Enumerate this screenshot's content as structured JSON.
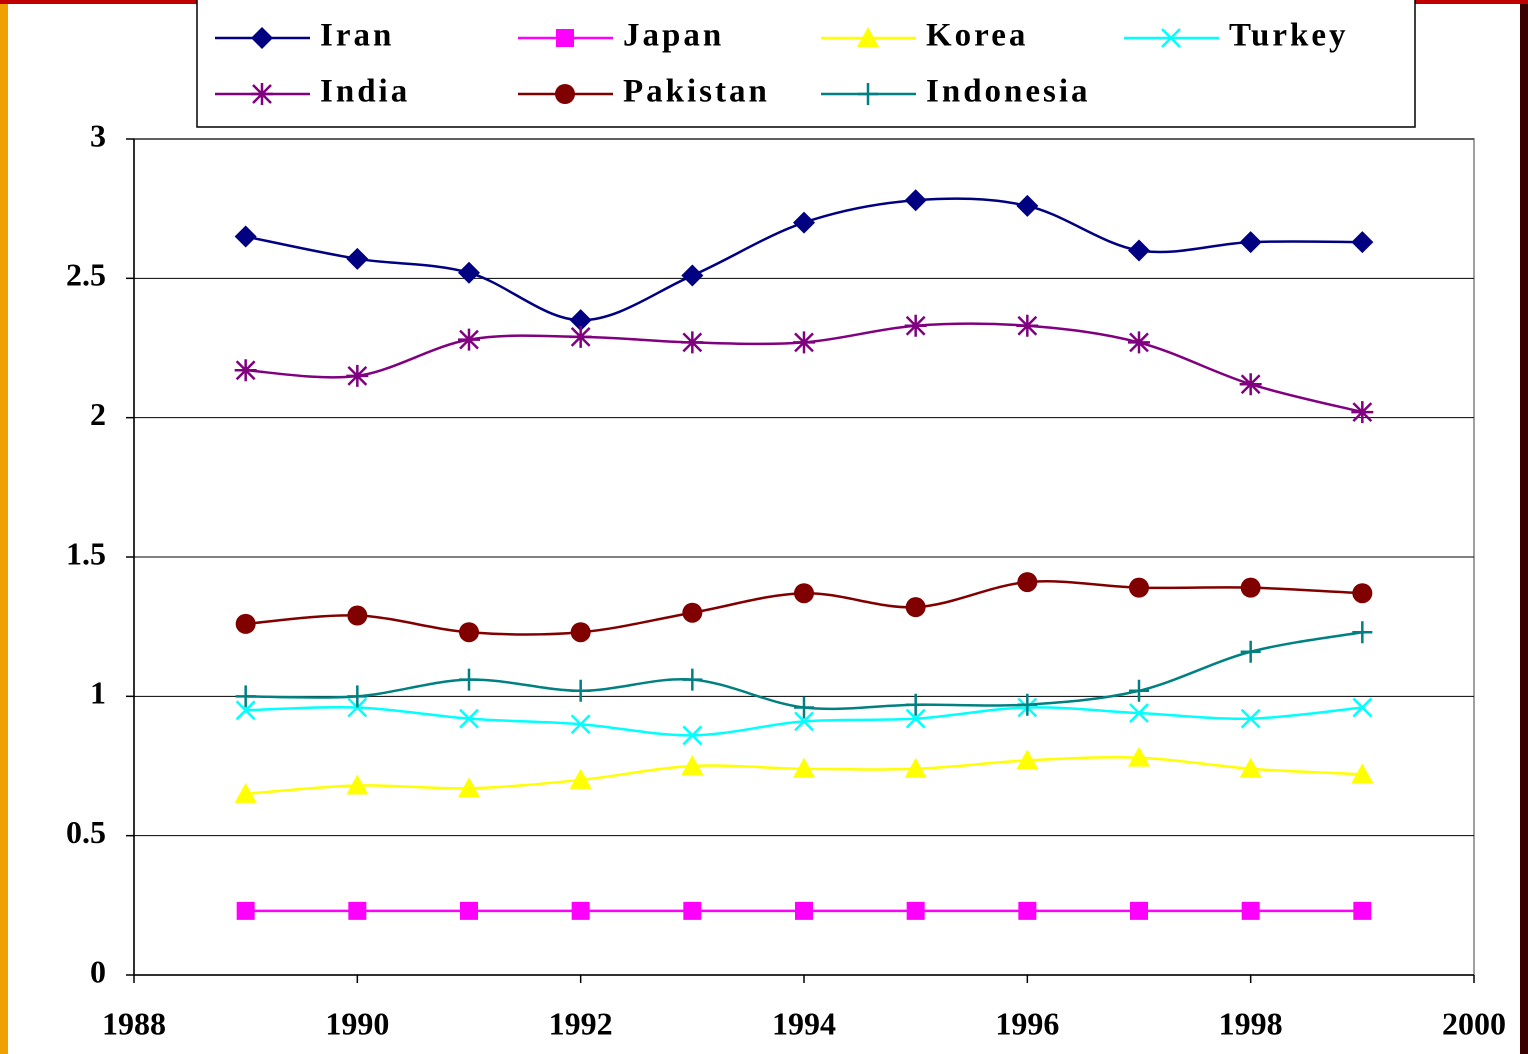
{
  "chart_data": {
    "type": "line",
    "x": [
      1989,
      1990,
      1991,
      1992,
      1993,
      1994,
      1995,
      1996,
      1997,
      1998,
      1999
    ],
    "xlim": [
      1988,
      2000
    ],
    "xticks": [
      1988,
      1990,
      1992,
      1994,
      1996,
      1998,
      2000
    ],
    "ylim": [
      0,
      3
    ],
    "yticks": [
      0,
      {
        "value": 0.5,
        "label": "0.5"
      },
      1,
      {
        "value": 1.5,
        "label": "1.5"
      },
      2,
      {
        "value": 2.5,
        "label": "2.5"
      },
      3
    ],
    "grid": true,
    "legend": "top",
    "series": [
      {
        "name": "Iran",
        "color": "#000080",
        "marker": "diamond",
        "values": [
          2.65,
          2.57,
          2.52,
          2.35,
          2.51,
          2.7,
          2.78,
          2.76,
          2.6,
          2.63,
          2.63
        ]
      },
      {
        "name": "Japan",
        "color": "#ff00ff",
        "marker": "square",
        "values": [
          0.23,
          0.23,
          0.23,
          0.23,
          0.23,
          0.23,
          0.23,
          0.23,
          0.23,
          0.23,
          0.23
        ]
      },
      {
        "name": "Korea",
        "color": "#ffff00",
        "marker": "triangle",
        "values": [
          0.65,
          0.68,
          0.67,
          0.7,
          0.75,
          0.74,
          0.74,
          0.77,
          0.78,
          0.74,
          0.72
        ]
      },
      {
        "name": "Turkey",
        "color": "#00ffff",
        "marker": "x",
        "values": [
          0.95,
          0.96,
          0.92,
          0.9,
          0.86,
          0.91,
          0.92,
          0.96,
          0.94,
          0.92,
          0.96
        ]
      },
      {
        "name": "India",
        "color": "#800080",
        "marker": "asterisk",
        "values": [
          2.17,
          2.15,
          2.28,
          2.29,
          2.27,
          2.27,
          2.33,
          2.33,
          2.27,
          2.12,
          2.02
        ]
      },
      {
        "name": "Pakistan",
        "color": "#800000",
        "marker": "circle",
        "values": [
          1.26,
          1.29,
          1.23,
          1.23,
          1.3,
          1.37,
          1.32,
          1.41,
          1.39,
          1.39,
          1.37
        ]
      },
      {
        "name": "Indonesia",
        "color": "#008080",
        "marker": "plus",
        "values": [
          1.0,
          1.0,
          1.06,
          1.02,
          1.06,
          0.96,
          0.97,
          0.97,
          1.02,
          1.16,
          1.23
        ]
      }
    ]
  }
}
